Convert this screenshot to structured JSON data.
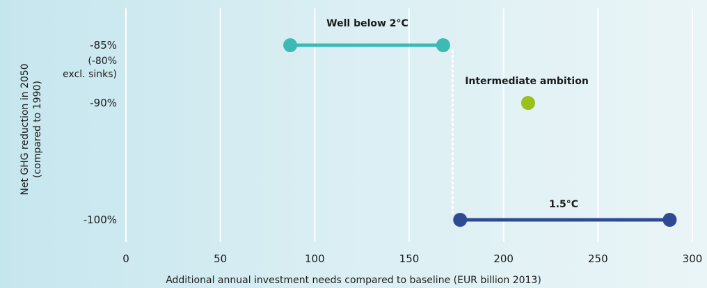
{
  "chart_data": {
    "type": "scatter",
    "xlabel": "Additional annual investment needs compared to baseline (EUR billion 2013)",
    "ylabel": [
      "Net GHG reduction in 2050",
      "(compared to 1990)"
    ],
    "xlim": [
      0,
      300
    ],
    "x_ticks": [
      0,
      50,
      100,
      150,
      200,
      250,
      300
    ],
    "y_ticks": [
      {
        "value": -85,
        "label": "-85%"
      },
      {
        "value": -90,
        "label": "-90%"
      },
      {
        "value": -100,
        "label": "-100%"
      }
    ],
    "y_note": {
      "value": -87.2,
      "lines": [
        "(-80%",
        "excl. sinks)"
      ]
    },
    "grid": "vertical",
    "series": [
      {
        "name": "Well below 2°C",
        "color": "#3dbab5",
        "points": [
          [
            87,
            -85
          ],
          [
            168,
            -85
          ]
        ]
      },
      {
        "name": "Intermediate ambition",
        "color": "#9bbf1c",
        "points": [
          [
            213,
            -90
          ]
        ]
      },
      {
        "name": "1.5°C",
        "color": "#2e4a94",
        "points": [
          [
            177,
            -100
          ],
          [
            288,
            -100
          ]
        ]
      }
    ],
    "connector": {
      "x": 173,
      "y_from": -85,
      "y_to": -100,
      "style": "dotted",
      "color": "#ffffff"
    }
  }
}
